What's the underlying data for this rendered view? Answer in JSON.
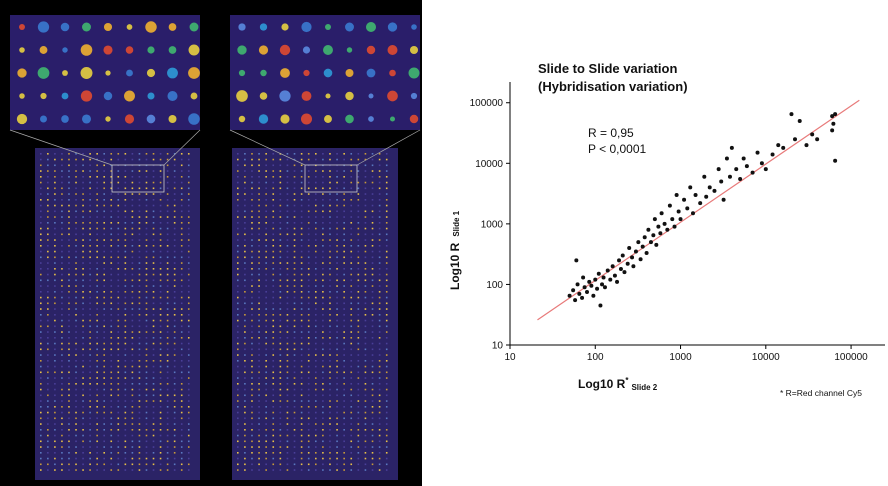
{
  "chart_data": {
    "type": "scatter",
    "title": "Slide to Slide variation",
    "subtitle": "(Hybridisation variation)",
    "annotations": [
      "R = 0,95",
      "P < 0,0001"
    ],
    "xlabel": "Log10 R",
    "xlabel_sup": "*",
    "xlabel_sub": "Slide 2",
    "ylabel": "Log10 R",
    "ylabel_sub": "Slide 1",
    "footnote": "* R=Red channel Cy5",
    "log_x": true,
    "log_y": true,
    "color": "#111111",
    "xlim": [
      10,
      250000
    ],
    "ylim": [
      10,
      220000
    ],
    "xticks": [
      10,
      100,
      1000,
      10000,
      100000
    ],
    "yticks": [
      10,
      100,
      1000,
      10000,
      100000
    ],
    "fit_line": {
      "x": [
        21,
        125000
      ],
      "y": [
        26,
        110000
      ],
      "color": "#e87a7a"
    },
    "x": [
      50,
      55,
      58,
      60,
      62,
      65,
      70,
      72,
      75,
      80,
      85,
      90,
      95,
      100,
      105,
      110,
      115,
      120,
      125,
      130,
      140,
      150,
      160,
      170,
      180,
      190,
      200,
      210,
      220,
      240,
      250,
      270,
      280,
      300,
      320,
      340,
      360,
      380,
      400,
      420,
      450,
      480,
      500,
      520,
      550,
      580,
      600,
      650,
      700,
      750,
      800,
      850,
      900,
      950,
      1000,
      1100,
      1200,
      1300,
      1400,
      1500,
      1700,
      1900,
      2000,
      2200,
      2500,
      2800,
      3000,
      3200,
      3500,
      3800,
      4000,
      4500,
      5000,
      5500,
      6000,
      7000,
      8000,
      9000,
      10000,
      12000,
      14000,
      16000,
      20000,
      22000,
      25000,
      30000,
      35000,
      40000,
      60000,
      62000,
      65000,
      65000,
      60000
    ],
    "values": [
      65,
      80,
      55,
      250,
      100,
      70,
      60,
      130,
      90,
      75,
      110,
      95,
      65,
      120,
      85,
      150,
      45,
      100,
      130,
      90,
      170,
      120,
      200,
      140,
      110,
      250,
      180,
      300,
      160,
      220,
      400,
      280,
      200,
      350,
      500,
      260,
      420,
      600,
      330,
      800,
      500,
      650,
      1200,
      450,
      900,
      700,
      1500,
      1000,
      800,
      2000,
      1200,
      900,
      3000,
      1600,
      1200,
      2500,
      1800,
      4000,
      1500,
      3000,
      2200,
      6000,
      2800,
      4000,
      3500,
      8000,
      5000,
      2500,
      12000,
      6000,
      18000,
      8000,
      5500,
      12000,
      9000,
      7000,
      15000,
      10000,
      8000,
      14000,
      20000,
      18000,
      65000,
      25000,
      50000,
      20000,
      30000,
      25000,
      60000,
      45000,
      11000,
      65000,
      35000
    ]
  }
}
